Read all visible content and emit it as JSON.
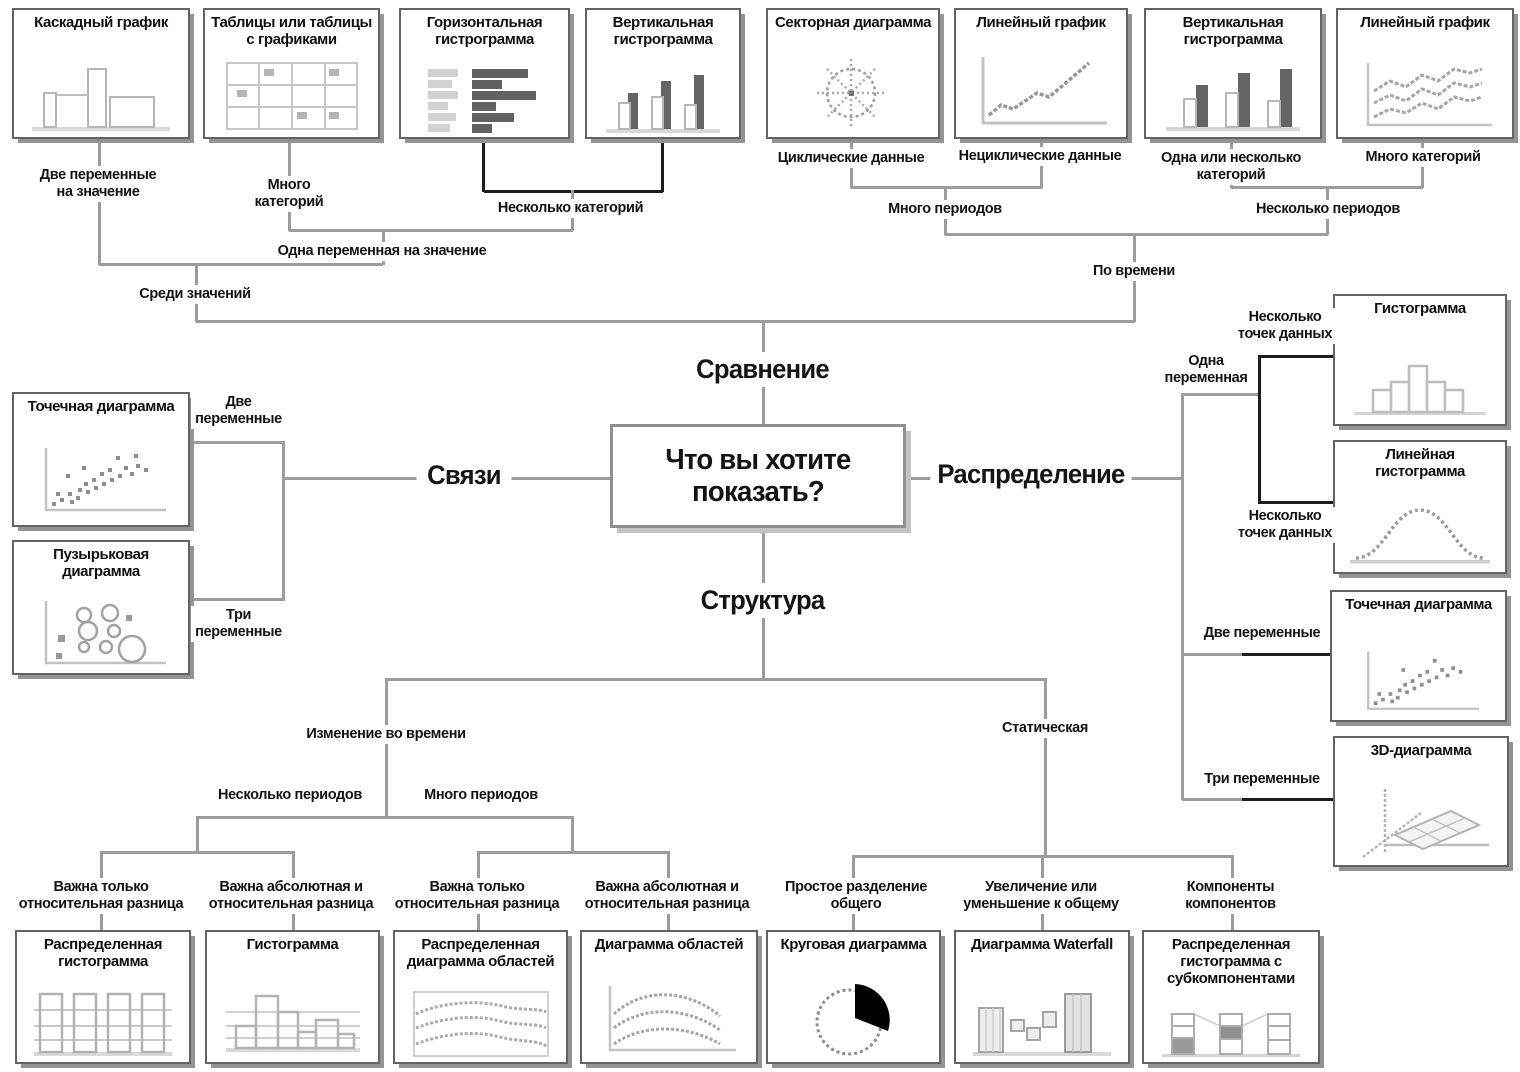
{
  "center": {
    "question": "Что вы хотите показать?"
  },
  "branches": {
    "comparison": "Сравнение",
    "relationships": "Связи",
    "distribution": "Распределение",
    "composition": "Структура"
  },
  "boxes": {
    "waterfall": "Каскадный график",
    "tables": "Таблицы или таблицы с графиками",
    "hbar": "Горизонтальная гистрограмма",
    "vbar": "Вертикальная гистрограмма",
    "radial": "Секторная диаграмма",
    "line": "Линейный график",
    "vbar_periods": "Вертикальная гистрограмма",
    "line_multi": "Линейный график",
    "scatter": "Точечная диаграмма",
    "bubble": "Пузырьковая диаграмма",
    "histogram": "Гистограмма",
    "line_histogram": "Линейная гистограмма",
    "scatter2": "Точечная диаграмма",
    "chart3d": "3D-диаграмма",
    "stacked100": "Распределенная гистограмма",
    "histogram2": "Гистограмма",
    "stacked_area": "Распределенная диаграмма областей",
    "area": "Диаграмма областей",
    "pie": "Круговая диаграмма",
    "waterfall2": "Диаграмма Waterfall",
    "stacked_sub": "Распределенная гистограмма с субкомпонентами"
  },
  "labels": {
    "two_vars_per_value": "Две переменные на значение",
    "many_categories_left": "Много категорий",
    "few_categories": "Несколько категорий",
    "one_var_per_value": "Одна переменная на значение",
    "among_values": "Среди значений",
    "cyclical_data": "Циклические данные",
    "non_cyclical_data": "Нециклические данные",
    "one_or_few_categories": "Одна или несколько категорий",
    "many_categories_right": "Много категорий",
    "many_periods_top": "Много периодов",
    "few_periods_top": "Несколько периодов",
    "over_time": "По времени",
    "two_variables_left": "Две переменные",
    "three_variables_left": "Три переменные",
    "one_variable": "Одна переменная",
    "few_data_points_top": "Несколько точек данных",
    "few_data_points_bottom": "Несколько точек данных",
    "two_variables_right": "Две переменные",
    "three_variables_right": "Три переменные",
    "change_over_time": "Изменение во времени",
    "few_periods_bottom": "Несколько периодов",
    "many_periods_bottom": "Много периодов",
    "rel_diff_only_1": "Важна только относительная разница",
    "abs_rel_diff_1": "Важна абсолютная и относительная разница",
    "rel_diff_only_2": "Важна только относительная разница",
    "abs_rel_diff_2": "Важна абсолютная и относительная разница",
    "static": "Статическая",
    "simple_share_of_total": "Простое разделение общего",
    "increase_decrease_to_total": "Увеличение или уменьшение к общему",
    "components_of_components": "Компоненты компонентов"
  }
}
